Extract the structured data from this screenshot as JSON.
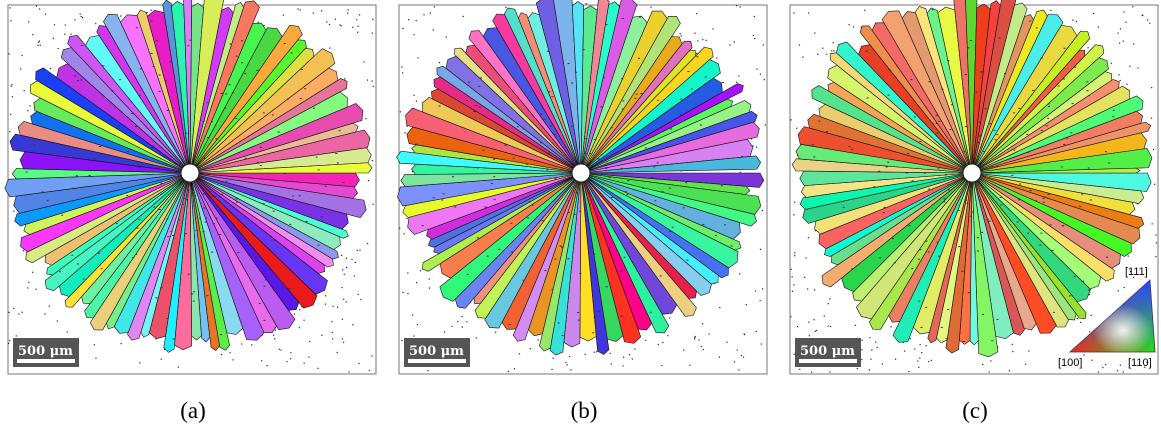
{
  "panels": [
    {
      "caption": "(a)",
      "scale_bar": "500 μm"
    },
    {
      "caption": "(b)",
      "scale_bar": "500 μm"
    },
    {
      "caption": "(c)",
      "scale_bar": "500 μm"
    }
  ],
  "legend": {
    "top": "[111]",
    "left": "[100]",
    "right": "[110]"
  }
}
